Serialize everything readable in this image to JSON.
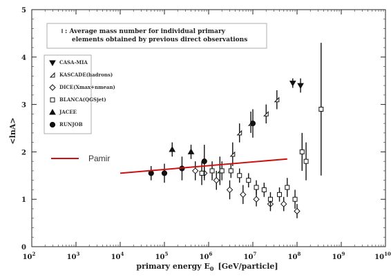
{
  "chart_data": {
    "type": "scatter",
    "xlabel": "primary energy  E",
    "xlabel_sub": "0",
    "xlabel_unit": "[GeV/particle]",
    "ylabel": "<lnA>",
    "xscale": "log",
    "xlim": [
      100,
      10000000000
    ],
    "ylim": [
      0,
      5
    ],
    "x_ticks": [
      {
        "base": "10",
        "exp": "2"
      },
      {
        "base": "10",
        "exp": "3"
      },
      {
        "base": "10",
        "exp": "4"
      },
      {
        "base": "10",
        "exp": "5"
      },
      {
        "base": "10",
        "exp": "6"
      },
      {
        "base": "10",
        "exp": "7"
      },
      {
        "base": "10",
        "exp": "8"
      },
      {
        "base": "10",
        "exp": "9"
      },
      {
        "base": "10",
        "exp": "10"
      }
    ],
    "y_ticks": [
      "0",
      "1",
      "2",
      "3",
      "4",
      "5"
    ],
    "grid": false,
    "legend_position": "top-left",
    "note": [
      ": Average mass number for individual primary",
      "elements obtained by previous direct observations"
    ],
    "series": [
      {
        "name": "CASA-MIA",
        "marker": "triangle-down",
        "points": [
          {
            "x": 80000000,
            "y": 3.45,
            "lo": 3.35,
            "hi": 3.55
          },
          {
            "x": 120000000,
            "y": 3.4,
            "lo": 3.25,
            "hi": 3.55
          }
        ]
      },
      {
        "name": "KASCADE(hadrons)",
        "marker": "half-square",
        "points": [
          {
            "x": 1800000,
            "y": 1.6,
            "lo": 1.3,
            "hi": 1.9
          },
          {
            "x": 3500000,
            "y": 1.95,
            "lo": 1.7,
            "hi": 2.2
          },
          {
            "x": 5000000,
            "y": 2.4,
            "lo": 2.2,
            "hi": 2.6
          },
          {
            "x": 9000000,
            "y": 2.6,
            "lo": 2.4,
            "hi": 2.85
          },
          {
            "x": 20000000,
            "y": 2.8,
            "lo": 2.6,
            "hi": 3.0
          },
          {
            "x": 35000000,
            "y": 3.1,
            "lo": 2.9,
            "hi": 3.3
          }
        ]
      },
      {
        "name": "DICE(Xmax+nmean)",
        "marker": "diamond",
        "points": [
          {
            "x": 500000,
            "y": 1.6,
            "lo": 1.4,
            "hi": 1.8
          },
          {
            "x": 800000,
            "y": 1.55,
            "lo": 1.4,
            "hi": 1.7
          },
          {
            "x": 1500000,
            "y": 1.4,
            "lo": 1.2,
            "hi": 1.6
          },
          {
            "x": 3000000,
            "y": 1.2,
            "lo": 1.0,
            "hi": 1.4
          },
          {
            "x": 6000000,
            "y": 1.1,
            "lo": 0.9,
            "hi": 1.3
          },
          {
            "x": 12000000,
            "y": 1.0,
            "lo": 0.85,
            "hi": 1.2
          },
          {
            "x": 25000000,
            "y": 0.9,
            "lo": 0.75,
            "hi": 1.05
          },
          {
            "x": 50000000,
            "y": 0.9,
            "lo": 0.75,
            "hi": 1.05
          },
          {
            "x": 100000000,
            "y": 0.75,
            "lo": 0.6,
            "hi": 0.9
          }
        ]
      },
      {
        "name": "BLANCA(QGSjet)",
        "marker": "square",
        "points": [
          {
            "x": 700000,
            "y": 1.55,
            "lo": 1.3,
            "hi": 1.8
          },
          {
            "x": 1200000,
            "y": 1.6,
            "lo": 1.4,
            "hi": 1.8
          },
          {
            "x": 2000000,
            "y": 1.6,
            "lo": 1.4,
            "hi": 1.8
          },
          {
            "x": 3200000,
            "y": 1.6,
            "lo": 1.45,
            "hi": 1.75
          },
          {
            "x": 5000000,
            "y": 1.5,
            "lo": 1.35,
            "hi": 1.65
          },
          {
            "x": 8000000,
            "y": 1.4,
            "lo": 1.25,
            "hi": 1.55
          },
          {
            "x": 12000000,
            "y": 1.25,
            "lo": 1.1,
            "hi": 1.4
          },
          {
            "x": 18000000,
            "y": 1.2,
            "lo": 1.05,
            "hi": 1.35
          },
          {
            "x": 25000000,
            "y": 1.0,
            "lo": 0.85,
            "hi": 1.15
          },
          {
            "x": 40000000,
            "y": 1.1,
            "lo": 0.95,
            "hi": 1.25
          },
          {
            "x": 60000000,
            "y": 1.25,
            "lo": 1.05,
            "hi": 1.45
          },
          {
            "x": 90000000,
            "y": 1.0,
            "lo": 0.8,
            "hi": 1.2
          },
          {
            "x": 130000000,
            "y": 2.0,
            "lo": 1.6,
            "hi": 2.4
          },
          {
            "x": 160000000,
            "y": 1.8,
            "lo": 1.4,
            "hi": 2.2
          },
          {
            "x": 350000000,
            "y": 2.9,
            "lo": 1.5,
            "hi": 4.3
          }
        ]
      },
      {
        "name": "JACEE",
        "marker": "triangle-up",
        "points": [
          {
            "x": 150000,
            "y": 2.05,
            "lo": 1.9,
            "hi": 2.2
          },
          {
            "x": 400000,
            "y": 2.0,
            "lo": 1.85,
            "hi": 2.15
          }
        ]
      },
      {
        "name": "RUNJOB",
        "marker": "circle",
        "points": [
          {
            "x": 50000,
            "y": 1.55,
            "lo": 1.4,
            "hi": 1.7
          },
          {
            "x": 100000,
            "y": 1.55,
            "lo": 1.35,
            "hi": 1.75
          },
          {
            "x": 250000,
            "y": 1.65,
            "lo": 1.4,
            "hi": 1.9
          },
          {
            "x": 800000,
            "y": 1.8,
            "lo": 1.45,
            "hi": 2.15
          },
          {
            "x": 10000000,
            "y": 2.6,
            "lo": 2.3,
            "hi": 2.9
          }
        ]
      },
      {
        "name": "Pamir",
        "marker": "line",
        "color": "#cc1111",
        "points": [
          {
            "x": 10000,
            "y": 1.55
          },
          {
            "x": 60000000,
            "y": 1.85
          }
        ]
      }
    ]
  }
}
